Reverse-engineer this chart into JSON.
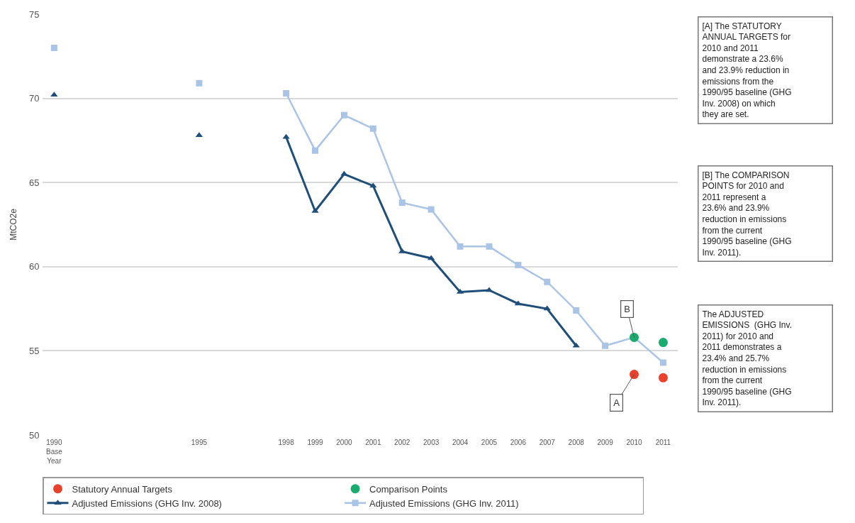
{
  "chart_data": {
    "type": "line",
    "ylabel": "MtCO2e",
    "x": [
      1990,
      1991,
      1992,
      1993,
      1994,
      1995,
      1996,
      1997,
      1998,
      1999,
      2000,
      2001,
      2002,
      2003,
      2004,
      2005,
      2006,
      2007,
      2008,
      2009,
      2010,
      2011
    ],
    "series": [
      {
        "name": "Statutory Annual Targets",
        "type": "scatter",
        "marker": "circle",
        "color": "#e8412c",
        "values": [
          null,
          null,
          null,
          null,
          null,
          null,
          null,
          null,
          null,
          null,
          null,
          null,
          null,
          null,
          null,
          null,
          null,
          null,
          null,
          null,
          53.6,
          53.4
        ]
      },
      {
        "name": "Comparison Points",
        "type": "scatter",
        "marker": "circle",
        "color": "#1aab6e",
        "values": [
          null,
          null,
          null,
          null,
          null,
          null,
          null,
          null,
          null,
          null,
          null,
          null,
          null,
          null,
          null,
          null,
          null,
          null,
          null,
          null,
          55.8,
          55.5
        ]
      },
      {
        "name": "Adjusted Emissions (GHG Inv. 2008)",
        "marker": "triangle",
        "color": "#1f4e79",
        "values": [
          70.2,
          null,
          null,
          null,
          null,
          67.8,
          null,
          null,
          67.7,
          63.3,
          65.5,
          64.8,
          60.9,
          60.5,
          58.5,
          58.6,
          57.8,
          57.5,
          55.3,
          null,
          null,
          null
        ]
      },
      {
        "name": "Adjusted Emissions (GHG Inv. 2011)",
        "marker": "square",
        "color": "#a9c4e6",
        "values": [
          73.0,
          null,
          null,
          null,
          null,
          70.9,
          null,
          null,
          70.3,
          66.9,
          69.0,
          68.2,
          63.8,
          63.4,
          61.2,
          61.2,
          60.1,
          59.1,
          57.4,
          55.3,
          55.8,
          54.3
        ]
      }
    ],
    "xlim": [
      1989.6,
      2011.5
    ],
    "xticks": [
      {
        "value": 1990,
        "label": "1990\nBase\nYear"
      },
      1995,
      1998,
      1999,
      2000,
      2001,
      2002,
      2003,
      2004,
      2005,
      2006,
      2007,
      2008,
      2009,
      2010,
      2011
    ],
    "ylim": [
      50,
      75
    ],
    "yticks": [
      50,
      55,
      60,
      65,
      70,
      75
    ],
    "grid": "y",
    "legend": "bottom",
    "annotations": [
      "[A] The STATUTORY\nANNUAL TARGETS for\n2010 and 2011\ndemonstrate a 23.6%\nand 23.9% reduction in\nemissions from the\n1990/95 baseline (GHG\nInv. 2008) on which\nthey are set.",
      "[B] The COMPARISON\nPOINTS for 2010 and\n2011 represent a\n23.6% and 23.9%\nreduction in emissions\nfrom the current\n1990/95 baseline (GHG\nInv. 2011).",
      "The ADJUSTED\nEMISSIONS  (GHG Inv.\n2011) for 2010 and\n2011 demonstrates a\n23.4% and 25.7%\nreduction in emissions\nfrom the current\n1990/95 baseline (GHG\nInv. 2011).",
      {
        "text": "A",
        "x": 2010,
        "y": 53.6
      },
      {
        "text": "B",
        "x": 2010,
        "y": 55.8
      }
    ]
  }
}
